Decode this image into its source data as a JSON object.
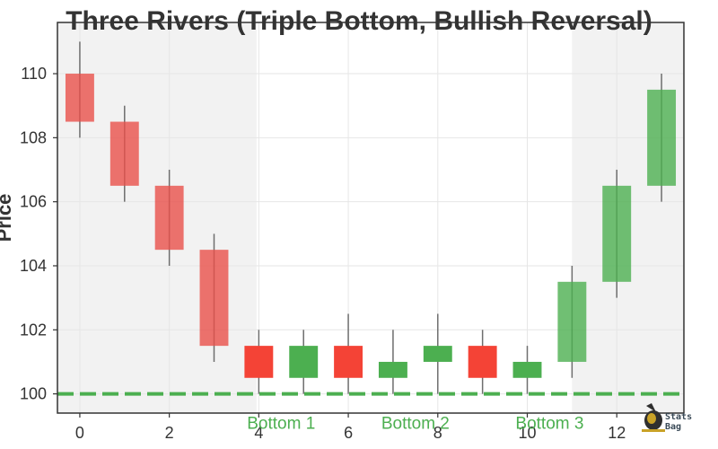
{
  "chart_data": {
    "type": "candlestick",
    "title": "Three Rivers (Triple Bottom, Bullish Reversal)",
    "xlabel": "",
    "ylabel": "Price",
    "xlim": [
      -0.5,
      13.5
    ],
    "ylim": [
      99.4,
      111.6
    ],
    "xticks": [
      0,
      2,
      4,
      6,
      8,
      10,
      12
    ],
    "yticks": [
      100,
      102,
      104,
      106,
      108,
      110
    ],
    "grid": true,
    "candles": [
      {
        "x": 0,
        "open": 110.0,
        "close": 108.5,
        "high": 111.0,
        "low": 108.0,
        "color": "#e8504a",
        "alpha": 0.8
      },
      {
        "x": 1,
        "open": 108.5,
        "close": 106.5,
        "high": 109.0,
        "low": 106.0,
        "color": "#e8504a",
        "alpha": 0.8
      },
      {
        "x": 2,
        "open": 106.5,
        "close": 104.5,
        "high": 107.0,
        "low": 104.0,
        "color": "#e8504a",
        "alpha": 0.8
      },
      {
        "x": 3,
        "open": 104.5,
        "close": 101.5,
        "high": 105.0,
        "low": 101.0,
        "color": "#e8504a",
        "alpha": 0.8
      },
      {
        "x": 4,
        "open": 101.5,
        "close": 100.5,
        "high": 102.0,
        "low": 100.0,
        "color": "#f44336",
        "alpha": 1.0
      },
      {
        "x": 5,
        "open": 100.5,
        "close": 101.5,
        "high": 102.0,
        "low": 100.0,
        "color": "#4caf50",
        "alpha": 1.0
      },
      {
        "x": 6,
        "open": 101.5,
        "close": 100.5,
        "high": 102.5,
        "low": 100.0,
        "color": "#f44336",
        "alpha": 1.0
      },
      {
        "x": 7,
        "open": 100.5,
        "close": 101.0,
        "high": 102.0,
        "low": 100.0,
        "color": "#4caf50",
        "alpha": 1.0
      },
      {
        "x": 8,
        "open": 101.0,
        "close": 101.5,
        "high": 102.5,
        "low": 100.0,
        "color": "#4caf50",
        "alpha": 1.0
      },
      {
        "x": 9,
        "open": 101.5,
        "close": 100.5,
        "high": 102.0,
        "low": 100.0,
        "color": "#f44336",
        "alpha": 1.0
      },
      {
        "x": 10,
        "open": 100.5,
        "close": 101.0,
        "high": 101.5,
        "low": 100.0,
        "color": "#4caf50",
        "alpha": 1.0
      },
      {
        "x": 11,
        "open": 101.0,
        "close": 103.5,
        "high": 104.0,
        "low": 100.5,
        "color": "#4caf50",
        "alpha": 0.8
      },
      {
        "x": 12,
        "open": 103.5,
        "close": 106.5,
        "high": 107.0,
        "low": 103.0,
        "color": "#4caf50",
        "alpha": 0.8
      },
      {
        "x": 13,
        "open": 106.5,
        "close": 109.5,
        "high": 110.0,
        "low": 106.0,
        "color": "#4caf50",
        "alpha": 0.8
      }
    ],
    "support_line": {
      "y": 100,
      "color": "#4caf50",
      "style": "dashed"
    },
    "shaded_regions": [
      {
        "x0": -0.5,
        "x1": 3.95,
        "color": "#f2f2f2"
      },
      {
        "x0": 11.0,
        "x1": 13.5,
        "color": "#f2f2f2"
      }
    ],
    "annotations": [
      {
        "text": "Bottom 1",
        "x": 4.5,
        "y": 99.1
      },
      {
        "text": "Bottom 2",
        "x": 7.5,
        "y": 99.1
      },
      {
        "text": "Bottom 3",
        "x": 10.5,
        "y": 99.1
      }
    ],
    "watermark": {
      "text_line1": "Stats",
      "text_line2": "Bag"
    }
  }
}
